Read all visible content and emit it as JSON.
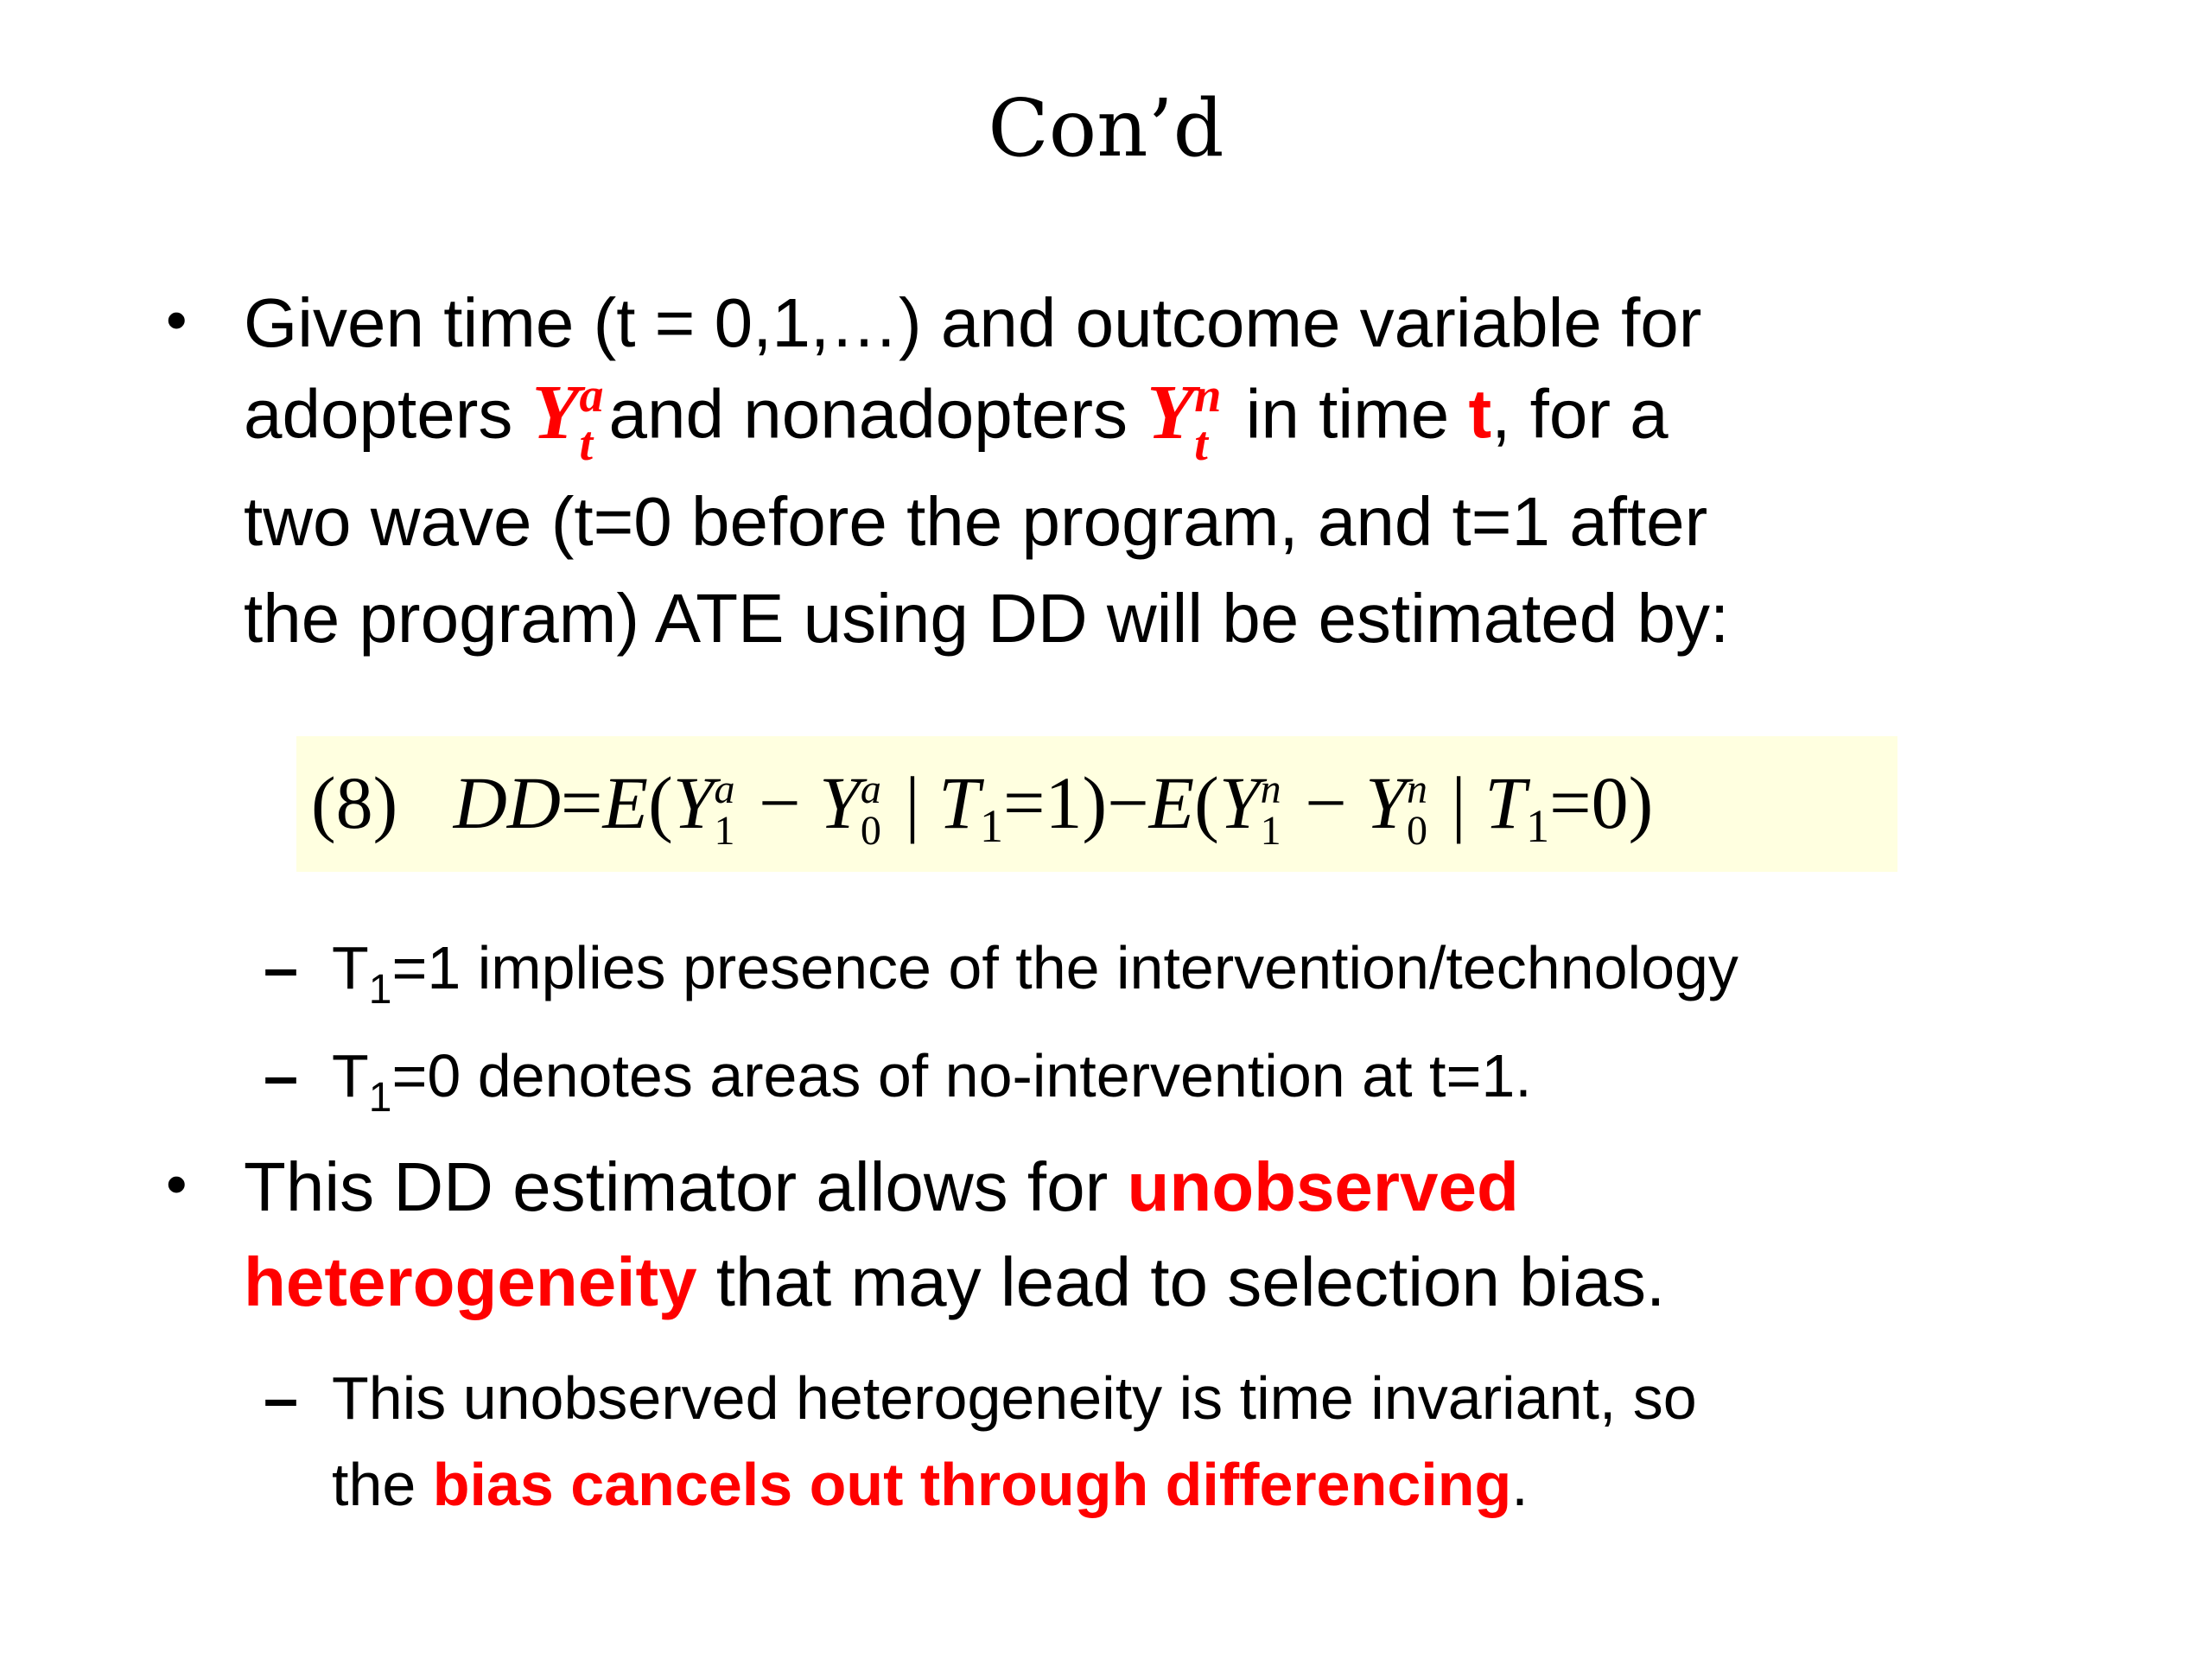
{
  "title": "Con’d",
  "bullet1": {
    "l1": "Given time (t = 0,1,…) and outcome variable for",
    "l2a": "adopters ",
    "l2_var1": "Y",
    "l2_sub1": "t",
    "l2_sup1": "a",
    "l2b": "and nonadopters ",
    "l2_var2": "Y",
    "l2_sub2": "t",
    "l2_sup2": "n",
    "l2c": " in time ",
    "l2_t": "t",
    "l2d": ",  for a",
    "l3": "two wave (t=0 before the program, and t=1 after",
    "l4": "the program) ATE using DD will be estimated by:"
  },
  "equation": {
    "number": "(8)",
    "lhs": "DD",
    "text_parts": [
      "=",
      "E",
      "(",
      "Y",
      "1",
      "a",
      "−",
      "Y",
      "0",
      "a",
      "|",
      "T",
      "1",
      "=1)",
      "−",
      "E",
      "(",
      "Y",
      "1",
      "n",
      "−",
      "Y",
      "0",
      "n",
      "|",
      "T",
      "1",
      "=0)"
    ],
    "highlight_color": "#ffffe0"
  },
  "subs1": [
    {
      "pre": "T",
      "sub": "1",
      "text": "=1 implies presence of the intervention/technology"
    },
    {
      "pre": "T",
      "sub": "1",
      "text": "=0 denotes areas of no-intervention at t=1."
    }
  ],
  "bullet2": {
    "l1a": "This DD estimator allows for ",
    "l1_red": "unobserved",
    "l2_red": "heterogeneity",
    "l2b": " that may lead to selection bias."
  },
  "subs2": {
    "l1": "This unobserved heterogeneity is time invariant, so",
    "l2a": "the ",
    "l2_red": "bias cancels out through differencing",
    "l2b": "."
  },
  "colors": {
    "accent": "#ff0000"
  }
}
